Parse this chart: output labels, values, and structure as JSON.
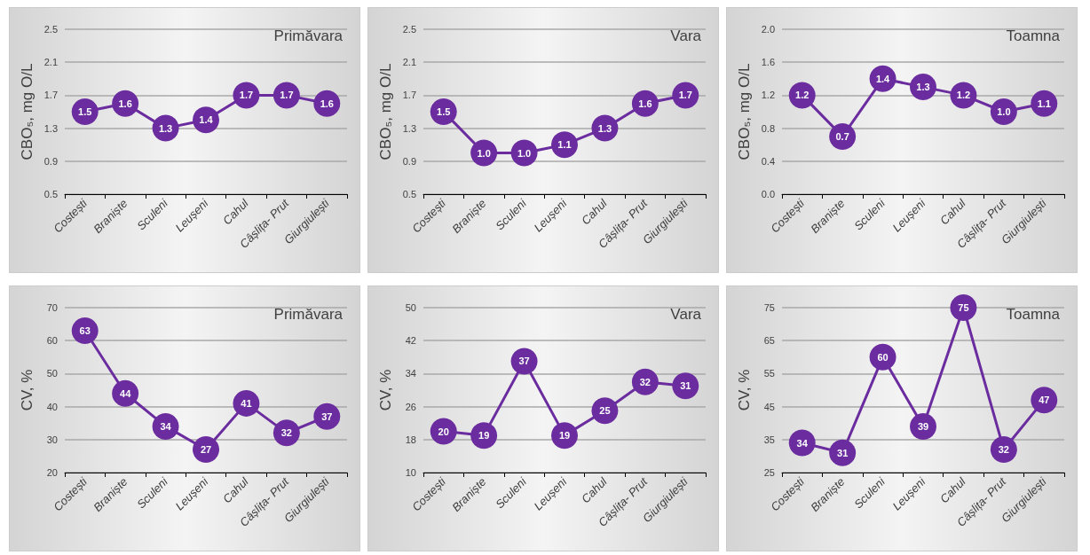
{
  "chart_data": [
    {
      "type": "line",
      "title": "Primăvara",
      "ylabel": "CBO₅, mg O/L",
      "categories": [
        "Costești",
        "Braniște",
        "Sculeni",
        "Leușeni",
        "Cahul",
        "Câșlița- Prut",
        "Giurgiulești"
      ],
      "values": [
        1.5,
        1.6,
        1.3,
        1.4,
        1.7,
        1.7,
        1.6
      ],
      "value_labels": [
        "1.5",
        "1.6",
        "1.3",
        "1.4",
        "1.7",
        "1.7",
        "1.6"
      ],
      "color": "#6a2c9e",
      "ylim": [
        0.5,
        2.5
      ],
      "yticks": [
        0.5,
        0.9,
        1.3,
        1.7,
        2.1,
        2.5
      ],
      "grid": "y",
      "marker": "circle"
    },
    {
      "type": "line",
      "title": "Vara",
      "ylabel": "CBO₅, mg O/L",
      "categories": [
        "Costești",
        "Braniște",
        "Sculeni",
        "Leușeni",
        "Cahul",
        "Câșlița- Prut",
        "Giurgiulești"
      ],
      "values": [
        1.5,
        1.0,
        1.0,
        1.1,
        1.3,
        1.6,
        1.7
      ],
      "value_labels": [
        "1.5",
        "1.0",
        "1.0",
        "1.1",
        "1.3",
        "1.6",
        "1.7"
      ],
      "color": "#6a2c9e",
      "ylim": [
        0.5,
        2.5
      ],
      "yticks": [
        0.5,
        0.9,
        1.3,
        1.7,
        2.1,
        2.5
      ],
      "grid": "y",
      "marker": "circle"
    },
    {
      "type": "line",
      "title": "Toamna",
      "ylabel": "CBO₅, mg O/L",
      "categories": [
        "Costești",
        "Braniște",
        "Sculeni",
        "Leușeni",
        "Cahul",
        "Câșlița- Prut",
        "Giurgiulești"
      ],
      "values": [
        1.2,
        0.7,
        1.4,
        1.3,
        1.2,
        1.0,
        1.1
      ],
      "value_labels": [
        "1.2",
        "0.7",
        "1.4",
        "1.3",
        "1.2",
        "1.0",
        "1.1"
      ],
      "color": "#6a2c9e",
      "ylim": [
        0.0,
        2.0
      ],
      "yticks": [
        {
          "value": 0,
          "label": "0.0"
        },
        0.4,
        0.8,
        1.2,
        1.6,
        {
          "value": 2,
          "label": "2.0"
        }
      ],
      "grid": "y",
      "marker": "circle"
    },
    {
      "type": "line",
      "title": "Primăvara",
      "ylabel": "CV, %",
      "categories": [
        "Costești",
        "Braniște",
        "Sculeni",
        "Leușeni",
        "Cahul",
        "Câșlița- Prut",
        "Giurgiulești"
      ],
      "values": [
        63,
        44,
        34,
        27,
        41,
        32,
        37
      ],
      "value_labels": [
        "63",
        "44",
        "34",
        "27",
        "41",
        "32",
        "37"
      ],
      "color": "#6a2c9e",
      "ylim": [
        20,
        70
      ],
      "yticks": [
        20,
        30,
        40,
        50,
        60,
        70
      ],
      "grid": "y",
      "marker": "circle"
    },
    {
      "type": "line",
      "title": "Vara",
      "ylabel": "CV, %",
      "categories": [
        "Costești",
        "Braniște",
        "Sculeni",
        "Leușeni",
        "Cahul",
        "Câșlița- Prut",
        "Giurgiulești"
      ],
      "values": [
        20,
        19,
        37,
        19,
        25,
        32,
        31
      ],
      "value_labels": [
        "20",
        "19",
        "37",
        "19",
        "25",
        "32",
        "31"
      ],
      "color": "#6a2c9e",
      "ylim": [
        10,
        50
      ],
      "yticks": [
        10,
        18,
        26,
        34,
        42,
        50
      ],
      "grid": "y",
      "marker": "circle"
    },
    {
      "type": "line",
      "title": "Toamna",
      "ylabel": "CV, %",
      "categories": [
        "Costești",
        "Braniște",
        "Sculeni",
        "Leușeni",
        "Cahul",
        "Câșlița- Prut",
        "Giurgiulești"
      ],
      "values": [
        34,
        31,
        60,
        39,
        75,
        32,
        47
      ],
      "value_labels": [
        "34",
        "31",
        "60",
        "39",
        "75",
        "32",
        "47"
      ],
      "color": "#6a2c9e",
      "ylim": [
        25,
        75
      ],
      "yticks": [
        25,
        35,
        45,
        55,
        65,
        75
      ],
      "grid": "y",
      "marker": "circle"
    }
  ]
}
